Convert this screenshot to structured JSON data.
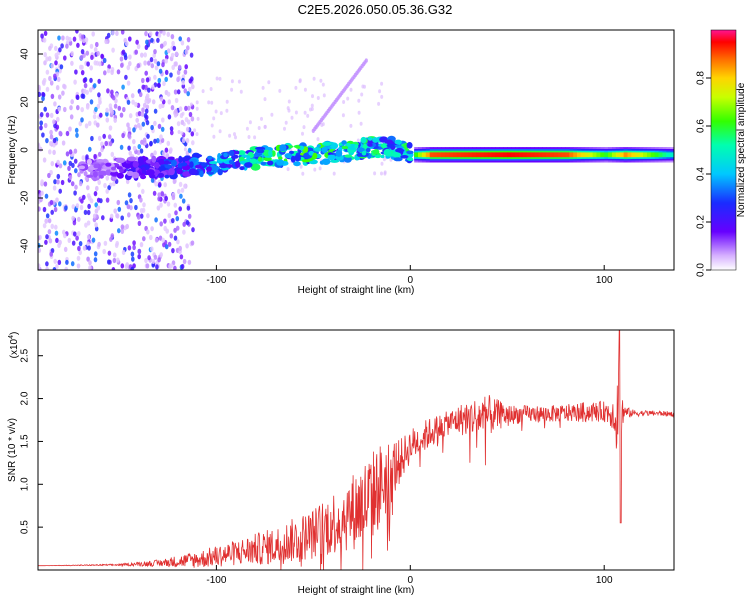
{
  "chart_data": [
    {
      "type": "heatmap",
      "title": "C2E5.2026.050.05.36.G32",
      "xlabel": "Height of straight line (km)",
      "ylabel": "Frequency (Hz)",
      "xlim": [
        -192,
        136
      ],
      "ylim": [
        -50,
        50
      ],
      "xticks": [
        -100,
        0,
        100
      ],
      "yticks": [
        -40,
        -20,
        0,
        20,
        40
      ],
      "ridge": {
        "x": [
          -192,
          -180,
          -160,
          -140,
          -120,
          -100,
          -80,
          -60,
          -40,
          -20,
          -10,
          0,
          10,
          50,
          80,
          100,
          110,
          136
        ],
        "y": [
          -9,
          -8.5,
          -8,
          -7.5,
          -7,
          -5.5,
          -3.5,
          -2,
          -1,
          1,
          1,
          -2,
          -2,
          -2,
          -2,
          -2,
          -2,
          -2
        ],
        "amplitude": [
          0.08,
          0.1,
          0.12,
          0.2,
          0.28,
          0.4,
          0.5,
          0.55,
          0.55,
          0.5,
          0.45,
          0.55,
          0.9,
          0.95,
          0.9,
          0.6,
          0.85,
          0.45
        ]
      },
      "colorbar": {
        "label": "Normalized spectral amplitude",
        "range": [
          0,
          1
        ],
        "ticks": [
          "0.0",
          "0.2",
          "0.4",
          "0.6",
          "0.8"
        ],
        "tick_values": [
          0.0,
          0.2,
          0.4,
          0.6,
          0.8
        ]
      }
    },
    {
      "type": "line",
      "xlabel": "Height of straight line (km)",
      "ylabel": "SNR (10 * v/v)",
      "scale_label": "(x10",
      "scale_exp": "4",
      "scale_close": ")",
      "xlim": [
        -192,
        136
      ],
      "ylim": [
        0,
        2.8
      ],
      "xticks": [
        -100,
        0,
        100
      ],
      "yticks": [
        "0.5",
        "1.0",
        "1.5",
        "2.0",
        "2.5"
      ],
      "ytick_values": [
        0.5,
        1.0,
        1.5,
        2.0,
        2.5
      ],
      "color": "#e03030",
      "series": [
        {
          "name": "SNR",
          "x": [
            -192,
            -150,
            -130,
            -110,
            -90,
            -70,
            -50,
            -40,
            -30,
            -22,
            -15,
            -10,
            -5,
            0,
            10,
            20,
            30,
            40,
            50,
            60,
            70,
            80,
            90,
            100,
            105,
            108,
            110,
            115,
            125,
            136
          ],
          "y": [
            0.05,
            0.06,
            0.08,
            0.12,
            0.2,
            0.28,
            0.42,
            0.55,
            0.68,
            0.8,
            1.0,
            1.15,
            1.28,
            1.45,
            1.6,
            1.72,
            1.78,
            1.8,
            1.81,
            1.82,
            1.82,
            1.83,
            1.84,
            1.85,
            1.83,
            1.75,
            1.84,
            1.83,
            1.83,
            1.82
          ],
          "noise": [
            0.0,
            0.01,
            0.04,
            0.1,
            0.15,
            0.22,
            0.3,
            0.38,
            0.45,
            0.55,
            0.5,
            0.4,
            0.25,
            0.2,
            0.18,
            0.14,
            0.22,
            0.25,
            0.12,
            0.1,
            0.1,
            0.1,
            0.12,
            0.12,
            0.2,
            1.0,
            0.08,
            0.04,
            0.03,
            0.03
          ]
        }
      ],
      "features": {
        "spike_x": 108,
        "spike_max": 2.8,
        "spike_min": 0.55
      }
    }
  ]
}
